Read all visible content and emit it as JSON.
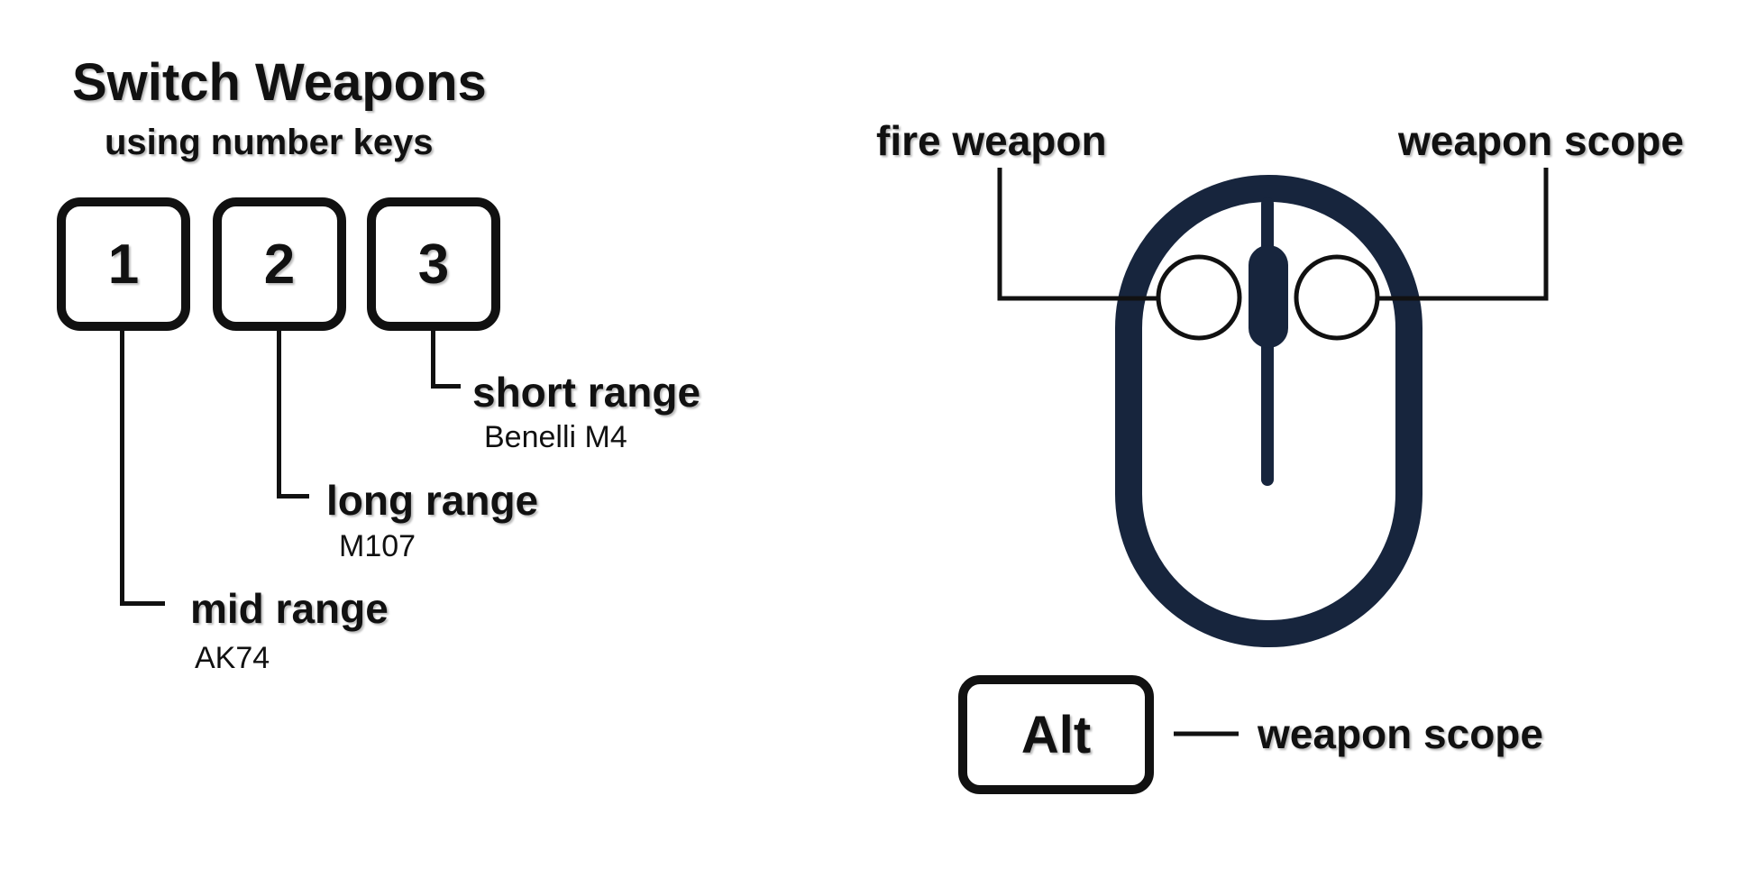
{
  "title": "Switch Weapons",
  "subtitle": "using number keys",
  "number_keys": [
    {
      "key": "1",
      "range": "mid range",
      "weapon": "AK74"
    },
    {
      "key": "2",
      "range": "long range",
      "weapon": "M107"
    },
    {
      "key": "3",
      "range": "short range",
      "weapon": "Benelli M4"
    }
  ],
  "mouse": {
    "left_button_label": "fire weapon",
    "right_button_label": "weapon scope"
  },
  "alt": {
    "key_label": "Alt",
    "action_label": "weapon scope"
  },
  "colors": {
    "mouse_body": "#17253d",
    "text": "#111111"
  },
  "icons": [
    "mouse-icon"
  ]
}
